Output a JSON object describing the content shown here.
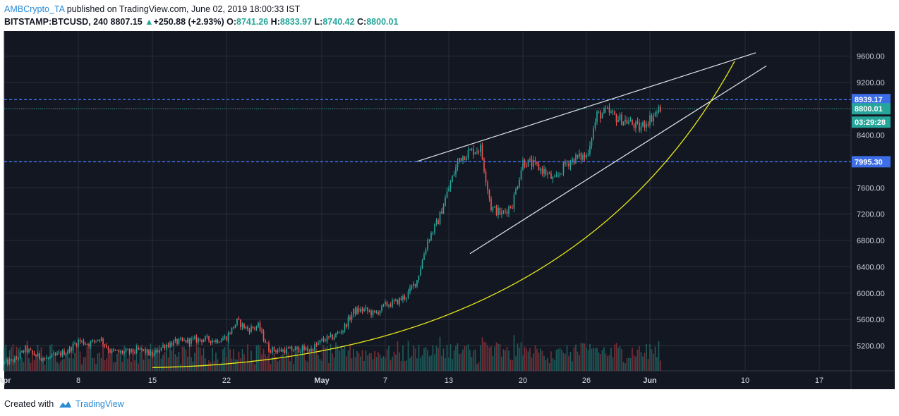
{
  "header": {
    "author": "AMBCrypto_TA",
    "published": "published on TradingView.com, June 02, 2019 18:00:33 IST",
    "symbol": "BITSTAMP:BTCUSD",
    "interval": "240",
    "last": "8807.15",
    "arrow": "▲",
    "change": "+250.88 (+2.93%)",
    "o_label": "O:",
    "o_value": "8741.26",
    "h_label": "H:",
    "h_value": "8833.97",
    "l_label": "L:",
    "l_value": "8740.42",
    "c_label": "C:",
    "c_value": "8800.01"
  },
  "footer": {
    "created_with": "Created with",
    "brand": "TradingView"
  },
  "colors": {
    "background": "#131722",
    "grid": "#2a2e39",
    "up": "#26a69a",
    "down": "#ef5350",
    "volume_up": "#1f5d5c",
    "volume_down": "#7a2e35",
    "level_line": "#3d6ee8",
    "trendline": "#e0e3eb",
    "curve": "#e8e817",
    "badge_blue": "#3d6ee8",
    "badge_green": "#26a69a"
  },
  "chart_data": {
    "type": "candlestick",
    "y_range": [
      4820,
      9980
    ],
    "y_ticks": [
      "9600.00",
      "9200.00",
      "8800.00",
      "8400.00",
      "8000.00",
      "7600.00",
      "7200.00",
      "6800.00",
      "6400.00",
      "6000.00",
      "5600.00",
      "5200.00"
    ],
    "x_range": [
      "2019-04-01",
      "2019-06-20"
    ],
    "x_ticks": [
      {
        "label": "Apr",
        "date": "2019-04-01",
        "bold": true
      },
      {
        "label": "8",
        "date": "2019-04-08"
      },
      {
        "label": "15",
        "date": "2019-04-15"
      },
      {
        "label": "22",
        "date": "2019-04-22"
      },
      {
        "label": "May",
        "date": "2019-05-01",
        "bold": true
      },
      {
        "label": "7",
        "date": "2019-05-07"
      },
      {
        "label": "13",
        "date": "2019-05-13"
      },
      {
        "label": "20",
        "date": "2019-05-20"
      },
      {
        "label": "26",
        "date": "2019-05-26"
      },
      {
        "label": "Jun",
        "date": "2019-06-01",
        "bold": true
      },
      {
        "label": "10",
        "date": "2019-06-10"
      },
      {
        "label": "17",
        "date": "2019-06-17"
      }
    ],
    "price_path": [
      [
        "2019-04-01",
        4940
      ],
      [
        "2019-04-02",
        4980
      ],
      [
        "2019-04-03",
        5150
      ],
      [
        "2019-04-04",
        5050
      ],
      [
        "2019-04-05",
        5000
      ],
      [
        "2019-04-06",
        5060
      ],
      [
        "2019-04-07",
        5120
      ],
      [
        "2019-04-08",
        5280
      ],
      [
        "2019-04-09",
        5230
      ],
      [
        "2019-04-10",
        5320
      ],
      [
        "2019-04-11",
        5120
      ],
      [
        "2019-04-12",
        5100
      ],
      [
        "2019-04-13",
        5110
      ],
      [
        "2019-04-14",
        5140
      ],
      [
        "2019-04-15",
        5060
      ],
      [
        "2019-04-16",
        5200
      ],
      [
        "2019-04-17",
        5250
      ],
      [
        "2019-04-18",
        5270
      ],
      [
        "2019-04-19",
        5290
      ],
      [
        "2019-04-20",
        5300
      ],
      [
        "2019-04-21",
        5280
      ],
      [
        "2019-04-22",
        5330
      ],
      [
        "2019-04-23",
        5570
      ],
      [
        "2019-04-24",
        5450
      ],
      [
        "2019-04-25",
        5500
      ],
      [
        "2019-04-26",
        5150
      ],
      [
        "2019-04-27",
        5130
      ],
      [
        "2019-04-28",
        5140
      ],
      [
        "2019-04-29",
        5150
      ],
      [
        "2019-04-30",
        5140
      ],
      [
        "2019-05-01",
        5280
      ],
      [
        "2019-05-02",
        5330
      ],
      [
        "2019-05-03",
        5450
      ],
      [
        "2019-05-04",
        5720
      ],
      [
        "2019-05-05",
        5750
      ],
      [
        "2019-05-06",
        5680
      ],
      [
        "2019-05-07",
        5820
      ],
      [
        "2019-05-08",
        5860
      ],
      [
        "2019-05-09",
        5960
      ],
      [
        "2019-05-10",
        6200
      ],
      [
        "2019-05-11",
        6800
      ],
      [
        "2019-05-12",
        7100
      ],
      [
        "2019-05-13",
        7600
      ],
      [
        "2019-05-14",
        8050
      ],
      [
        "2019-05-15",
        8150
      ],
      [
        "2019-05-16",
        8200
      ],
      [
        "2019-05-17",
        7300
      ],
      [
        "2019-05-18",
        7200
      ],
      [
        "2019-05-19",
        7350
      ],
      [
        "2019-05-20",
        8000
      ],
      [
        "2019-05-21",
        7950
      ],
      [
        "2019-05-22",
        7850
      ],
      [
        "2019-05-23",
        7700
      ],
      [
        "2019-05-24",
        7960
      ],
      [
        "2019-05-25",
        8050
      ],
      [
        "2019-05-26",
        8080
      ],
      [
        "2019-05-27",
        8700
      ],
      [
        "2019-05-28",
        8750
      ],
      [
        "2019-05-29",
        8650
      ],
      [
        "2019-05-30",
        8600
      ],
      [
        "2019-05-31",
        8500
      ],
      [
        "2019-06-01",
        8650
      ],
      [
        "2019-06-02",
        8807
      ]
    ],
    "horizontal_levels": [
      {
        "price": 8939.17,
        "label": "8939.17",
        "style": "dashed"
      },
      {
        "price": 7995.3,
        "label": "7995.30",
        "style": "dashed"
      }
    ],
    "last_price": {
      "price": 8800.01,
      "label": "8800.01"
    },
    "countdown": "03:29:28",
    "trendlines": [
      {
        "name": "upper-channel-line",
        "from": [
          "2019-05-10",
          8000
        ],
        "to": [
          "2019-06-11",
          9650
        ]
      },
      {
        "name": "lower-channel-line",
        "from": [
          "2019-05-15",
          6600
        ],
        "to": [
          "2019-06-12",
          9450
        ]
      }
    ],
    "parabolic_curve": {
      "from": [
        "2019-04-15",
        4870
      ],
      "to": [
        "2019-06-09",
        9520
      ]
    },
    "grid": true
  }
}
